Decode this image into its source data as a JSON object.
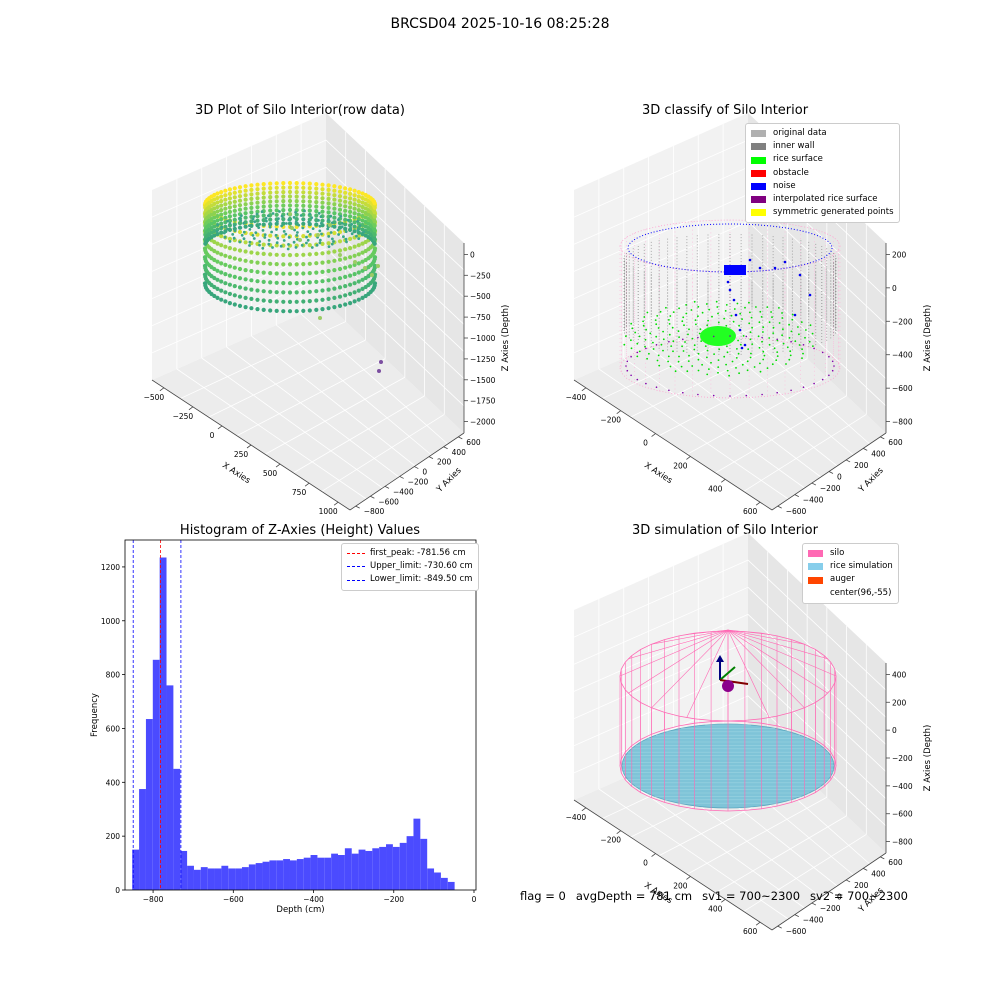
{
  "suptitle": "BRCSD04 2025-10-16 08:25:28",
  "panels": [
    {
      "title": "3D Plot of Silo Interior(row data)",
      "type": "scatter3d",
      "xlabel": "X Axies",
      "ylabel": "Y Axies",
      "zlabel": "Z Axies (Depth)",
      "xticks": [
        "−500",
        "−250",
        "0",
        "250",
        "500",
        "750",
        "1000"
      ],
      "yticks": [
        "−800",
        "−600",
        "−400",
        "−200",
        "0",
        "200",
        "400",
        "600"
      ],
      "zticks": [
        "0",
        "−250",
        "−500",
        "−750",
        "−1000",
        "−1250",
        "−1500",
        "−1750",
        "−2000"
      ],
      "colormap": "viridis"
    },
    {
      "title": "3D classify of Silo Interior",
      "type": "scatter3d",
      "xlabel": "X Axies",
      "ylabel": "Y Axies",
      "zlabel": "Z Axies (Depth)",
      "xticks": [
        "−400",
        "−200",
        "0",
        "200",
        "400",
        "600"
      ],
      "yticks": [
        "−600",
        "−400",
        "−200",
        "0",
        "200",
        "400",
        "600"
      ],
      "zticks": [
        "200",
        "0",
        "−200",
        "−400",
        "−600",
        "−800"
      ],
      "legend": [
        {
          "label": "original data",
          "color": "#b0b0b0"
        },
        {
          "label": "inner wall",
          "color": "#808080"
        },
        {
          "label": "rice surface",
          "color": "#00ff00"
        },
        {
          "label": "obstacle",
          "color": "#ff0000"
        },
        {
          "label": "noise",
          "color": "#0000ff"
        },
        {
          "label": "interpolated rice surface",
          "color": "#800080"
        },
        {
          "label": "symmetric generated points",
          "color": "#ffff00"
        }
      ]
    },
    {
      "title": "Histogram of Z-Axies (Height) Values",
      "type": "bar",
      "xlabel": "Depth (cm)",
      "ylabel": "Frequency",
      "bar_color": "#4b4bff",
      "legend": [
        {
          "label": "first_peak: -781.56 cm",
          "color": "#ff0000"
        },
        {
          "label": "Upper_limit: -730.60 cm",
          "color": "#0000ff"
        },
        {
          "label": "Lower_limit: -849.50 cm",
          "color": "#0000ff"
        }
      ]
    },
    {
      "title": "3D simulation of Silo Interior",
      "type": "surface3d",
      "xlabel": "X Axies",
      "ylabel": "Y Axies",
      "zlabel": "Z Axies (Depth)",
      "xticks": [
        "−400",
        "−200",
        "0",
        "200",
        "400",
        "600"
      ],
      "yticks": [
        "−600",
        "−400",
        "−200",
        "0",
        "200",
        "400",
        "600"
      ],
      "zticks": [
        "400",
        "200",
        "0",
        "−200",
        "−400",
        "−600",
        "−800"
      ],
      "legend": [
        {
          "label": "silo",
          "color": "#ff69b4"
        },
        {
          "label": "rice simulation",
          "color": "#87ceeb"
        },
        {
          "label": "auger",
          "color": "#ff4500"
        },
        {
          "label": "center(96,-55)",
          "color": "#ffffff"
        }
      ]
    }
  ],
  "chart_data": {
    "type": "bar",
    "title": "Histogram of Z-Axies (Height) Values",
    "xlabel": "Depth (cm)",
    "ylabel": "Frequency",
    "xlim": [
      -870,
      5
    ],
    "ylim": [
      0,
      1300
    ],
    "xticks": [
      -800,
      -600,
      -400,
      -200,
      0
    ],
    "xtick_labels": [
      "−800",
      "−600",
      "−400",
      "−200",
      "0"
    ],
    "yticks": [
      0,
      200,
      400,
      600,
      800,
      1000,
      1200
    ],
    "bin_start": -852,
    "bin_width": 17.1,
    "values": [
      150,
      375,
      635,
      855,
      1235,
      760,
      450,
      145,
      90,
      75,
      85,
      80,
      80,
      90,
      80,
      80,
      85,
      95,
      100,
      105,
      110,
      110,
      115,
      110,
      115,
      120,
      130,
      120,
      120,
      135,
      130,
      155,
      135,
      150,
      145,
      155,
      160,
      170,
      160,
      175,
      200,
      265,
      190,
      80,
      65,
      45,
      30
    ],
    "vlines": [
      {
        "x": -781.56,
        "color": "#ff0000",
        "label": "first_peak: -781.56 cm"
      },
      {
        "x": -730.6,
        "color": "#0000ff",
        "label": "Upper_limit: -730.60 cm"
      },
      {
        "x": -849.5,
        "color": "#0000ff",
        "label": "Lower_limit: -849.50 cm"
      }
    ],
    "legend_position": "upper right"
  },
  "footer": {
    "flag": "flag = 0",
    "avg_depth": "avgDepth = 781 cm",
    "sv1": "sv1 = 700~2300",
    "sv2": "sv2 = 700~2300"
  }
}
